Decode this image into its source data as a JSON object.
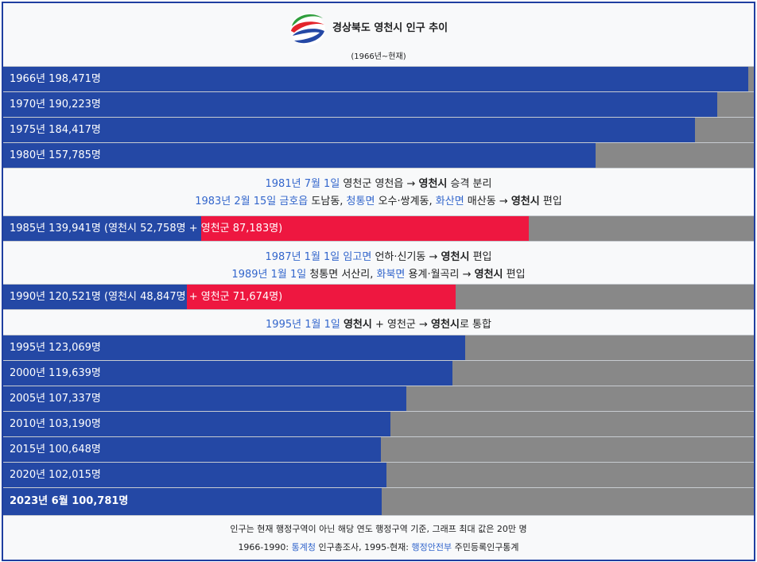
{
  "header": {
    "title": "경상북도 영천시 인구 추이",
    "subtitle": "(1966년~현재)"
  },
  "colors": {
    "yeongcheon_si": "#2448a5",
    "yeongcheon_gun": "#ee1740",
    "background_bar": "#888888",
    "link": "#3366cc",
    "border": "#1f3fa0"
  },
  "chart_data": {
    "type": "bar",
    "orientation": "horizontal",
    "max_value": 200000,
    "rows": [
      {
        "year": "1966",
        "total": 198471,
        "label": "1966년 198,471명"
      },
      {
        "year": "1970",
        "total": 190223,
        "label": "1970년 190,223명"
      },
      {
        "year": "1975",
        "total": 184417,
        "label": "1975년 184,417명"
      },
      {
        "year": "1980",
        "total": 157785,
        "label": "1980년 157,785명"
      },
      {
        "year": "1985",
        "total": 139941,
        "si": 52758,
        "gun": 87183,
        "label_a": "1985년 139,941명 (영천시 52,758명",
        "label_b": " + 영천군 87,183명)"
      },
      {
        "year": "1990",
        "total": 120521,
        "si": 48847,
        "gun": 71674,
        "label_a": "1990년 120,521명 (영천시 48,847명",
        "label_b": " + 영천군 71,674명)"
      },
      {
        "year": "1995",
        "total": 123069,
        "label": "1995년 123,069명"
      },
      {
        "year": "2000",
        "total": 119639,
        "label": "2000년 119,639명"
      },
      {
        "year": "2005",
        "total": 107337,
        "label": "2005년 107,337명"
      },
      {
        "year": "2010",
        "total": 103190,
        "label": "2010년 103,190명"
      },
      {
        "year": "2015",
        "total": 100648,
        "label": "2015년 100,648명"
      },
      {
        "year": "2020",
        "total": 102015,
        "label": "2020년 102,015명"
      },
      {
        "year": "2023.06",
        "total": 100781,
        "label": "2023년 6월 100,781명"
      }
    ]
  },
  "notes": {
    "n1981": {
      "date": "1981년 7월 1일",
      "text1": " 영천군 영천읍 → ",
      "bold": "영천시",
      "text2": " 승격 분리"
    },
    "n1983": {
      "date": "1983년 2월 15일",
      "place1": "금호읍",
      "t1": " 도남동, ",
      "place2": "청통면",
      "t2": " 오수·쌍계동, ",
      "place3": "화산면",
      "t3": " 매산동 → ",
      "bold": "영천시",
      "t4": " 편입"
    },
    "n1987": {
      "date": "1987년 1월 1일",
      "place1": "임고면",
      "t1": " 언하·신기동 → ",
      "bold": "영천시",
      "t2": " 편입"
    },
    "n1989": {
      "date": "1989년 1월 1일",
      "t1": " 청통면 서산리, ",
      "place1": "화북면",
      "t2": " 용계·월곡리 → ",
      "bold": "영천시",
      "t3": " 편입"
    },
    "n1995": {
      "date": "1995년 1월 1일",
      "t0": " ",
      "bold1": "영천시",
      "t1": " + 영천군 → ",
      "bold2": "영천시",
      "t2": "로 통합"
    }
  },
  "footer": {
    "line1": "인구는 현재 행정구역이 아닌 해당 연도 행정구역 기준, 그래프 최대 값은 20만 명",
    "line2_a": "1966-1990: ",
    "source1": "통계청",
    "line2_b": " 인구총조사, 1995-현재: ",
    "source2": "행정안전부",
    "line2_c": " 주민등록인구통계"
  }
}
